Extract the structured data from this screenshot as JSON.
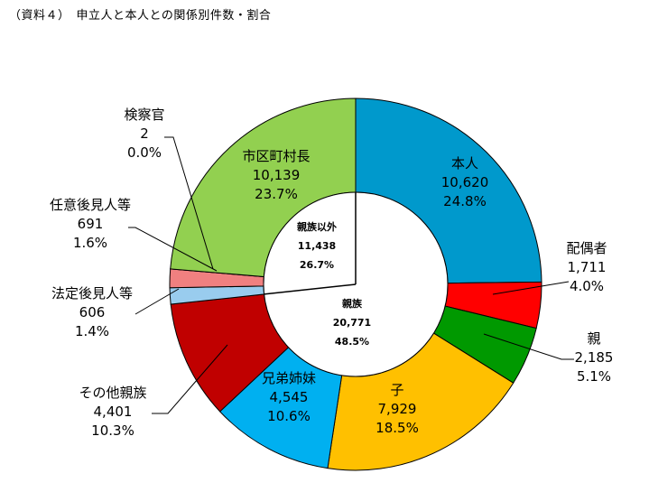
{
  "title": "（資料４）　申立人と本人との関係別件数・割合",
  "chart_data": {
    "type": "pie",
    "style": "donut",
    "slices": [
      {
        "name": "本人",
        "count": "10,620",
        "pct": "24.8%",
        "value": 10620,
        "color": "#0099CC"
      },
      {
        "name": "配偶者",
        "count": "1,711",
        "pct": "4.0%",
        "value": 1711,
        "color": "#FF0000"
      },
      {
        "name": "親",
        "count": "2,185",
        "pct": "5.1%",
        "value": 2185,
        "color": "#009900"
      },
      {
        "name": "子",
        "count": "7,929",
        "pct": "18.5%",
        "value": 7929,
        "color": "#FFC000"
      },
      {
        "name": "兄弟姉妹",
        "count": "4,545",
        "pct": "10.6%",
        "value": 4545,
        "color": "#00B0F0"
      },
      {
        "name": "その他親族",
        "count": "4,401",
        "pct": "10.3%",
        "value": 4401,
        "color": "#C00000"
      },
      {
        "name": "法定後見人等",
        "count": "606",
        "pct": "1.4%",
        "value": 606,
        "color": "#99CCEE"
      },
      {
        "name": "任意後見人等",
        "count": "691",
        "pct": "1.6%",
        "value": 691,
        "color": "#F08080"
      },
      {
        "name": "検察官",
        "count": "2",
        "pct": "0.0%",
        "value": 2,
        "color": "#FFFFFF"
      },
      {
        "name": "市区町村長",
        "count": "10,139",
        "pct": "23.7%",
        "value": 10139,
        "color": "#92D050"
      }
    ],
    "inner": [
      {
        "name": "親族以外",
        "count": "11,438",
        "pct": "26.7%"
      },
      {
        "name": "親族",
        "count": "20,771",
        "pct": "48.5%"
      }
    ]
  }
}
